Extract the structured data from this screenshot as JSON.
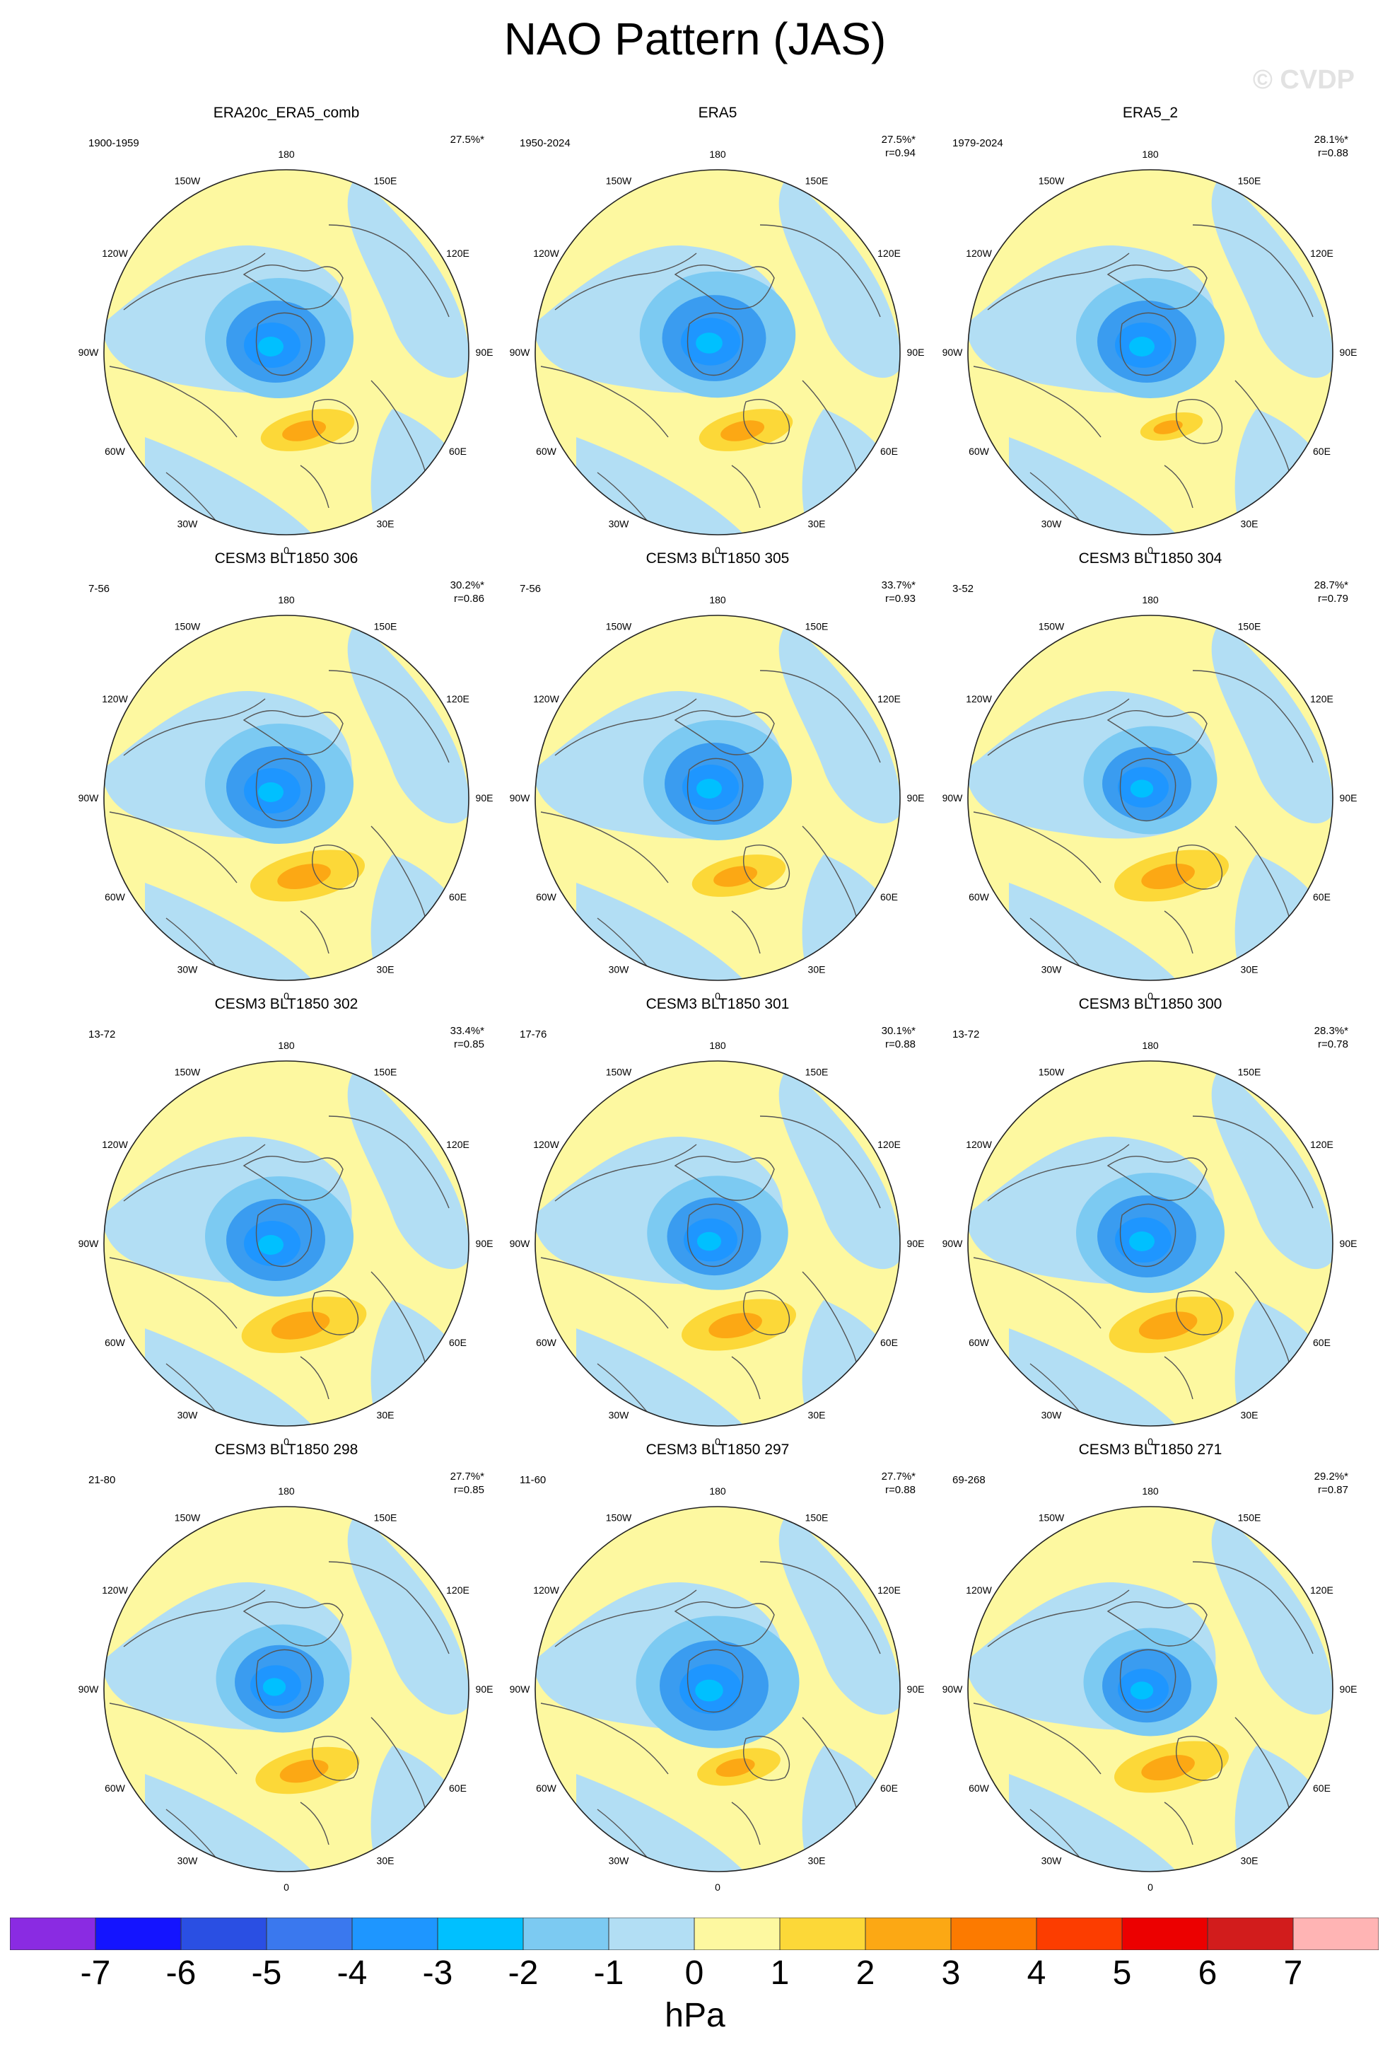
{
  "title": "NAO Pattern (JAS)",
  "watermark": "© CVDP",
  "colorbar": {
    "unit": "hPa",
    "labels": [
      "-7",
      "-6",
      "-5",
      "-4",
      "-3",
      "-2",
      "-1",
      "0",
      "1",
      "2",
      "3",
      "4",
      "5",
      "6",
      "7"
    ],
    "colors": [
      "#8a2be2",
      "#1414ff",
      "#2a4fe3",
      "#3a78ee",
      "#1e96ff",
      "#00c0ff",
      "#7ccaf2",
      "#b2def4",
      "#fdf8a0",
      "#fcd838",
      "#fca814",
      "#fc7a00",
      "#fc3d00",
      "#ec0000",
      "#d21c1c",
      "#ffb4b4"
    ]
  },
  "lon_labels": {
    "deg180": "180",
    "e150": "150E",
    "e120": "120E",
    "e90": "90E",
    "e60": "60E",
    "e30": "30E",
    "deg0": "0",
    "w30": "30W",
    "w60": "60W",
    "w90": "90W",
    "w120": "120W",
    "w150": "150W"
  },
  "panels": [
    {
      "title": "ERA20c_ERA5_comb",
      "period": "1900-1959",
      "pct": "27.5%*",
      "r": ""
    },
    {
      "title": "ERA5",
      "period": "1950-2024",
      "pct": "27.5%*",
      "r": "r=0.94"
    },
    {
      "title": "ERA5_2",
      "period": "1979-2024",
      "pct": "28.1%*",
      "r": "r=0.88"
    },
    {
      "title": "CESM3 BLT1850 306",
      "period": "7-56",
      "pct": "30.2%*",
      "r": "r=0.86"
    },
    {
      "title": "CESM3 BLT1850 305",
      "period": "7-56",
      "pct": "33.7%*",
      "r": "r=0.93"
    },
    {
      "title": "CESM3 BLT1850 304",
      "period": "3-52",
      "pct": "28.7%*",
      "r": "r=0.79"
    },
    {
      "title": "CESM3 BLT1850 302",
      "period": "13-72",
      "pct": "33.4%*",
      "r": "r=0.85"
    },
    {
      "title": "CESM3 BLT1850 301",
      "period": "17-76",
      "pct": "30.1%*",
      "r": "r=0.88"
    },
    {
      "title": "CESM3 BLT1850 300",
      "period": "13-72",
      "pct": "28.3%*",
      "r": "r=0.78"
    },
    {
      "title": "CESM3 BLT1850 298",
      "period": "21-80",
      "pct": "27.7%*",
      "r": "r=0.85"
    },
    {
      "title": "CESM3 BLT1850 297",
      "period": "11-60",
      "pct": "27.7%*",
      "r": "r=0.88"
    },
    {
      "title": "CESM3 BLT1850 271",
      "period": "69-268",
      "pct": "29.2%*",
      "r": "r=0.87"
    }
  ]
}
